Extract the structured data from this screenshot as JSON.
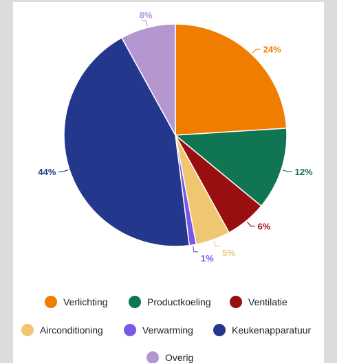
{
  "chart_data": {
    "type": "pie",
    "categories": [
      "Verlichting",
      "Productkoeling",
      "Ventilatie",
      "Airconditioning",
      "Verwarming",
      "Keukenapparatuur",
      "Overig"
    ],
    "values": [
      24,
      12,
      6,
      5,
      1,
      44,
      8
    ],
    "data_labels": [
      "24%",
      "12%",
      "6%",
      "5%",
      "1%",
      "44%",
      "8%"
    ],
    "colors": [
      "#f07c00",
      "#0f7552",
      "#990e0e",
      "#f0c670",
      "#7a58e6",
      "#23388c",
      "#b497d1"
    ],
    "legend_position": "bottom",
    "title": ""
  }
}
